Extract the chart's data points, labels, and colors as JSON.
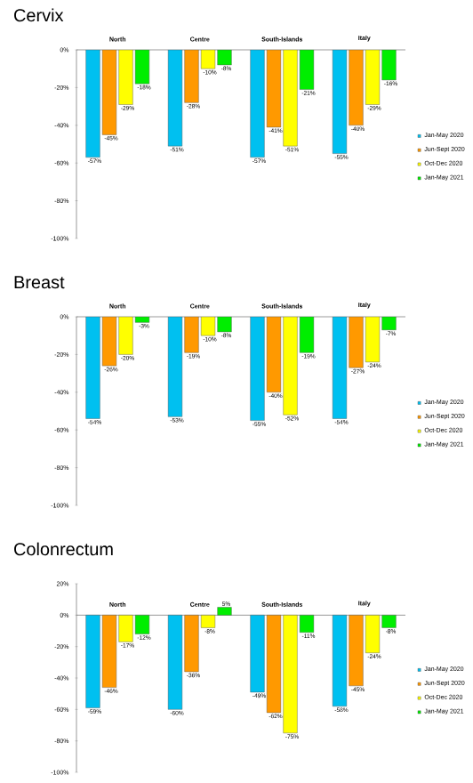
{
  "chart_data": [
    {
      "type": "bar",
      "title": "Cervix",
      "categories": [
        "North",
        "Centre",
        "South-Islands",
        "Italy"
      ],
      "legend": "right",
      "ylim": [
        -100,
        0
      ],
      "yticks": [
        {
          "value": -100,
          "label": "-100%"
        },
        {
          "value": -80,
          "label": "-80%"
        },
        {
          "value": -60,
          "label": "-60%"
        },
        {
          "value": -40,
          "label": "-40%"
        },
        {
          "value": -20,
          "label": "-20%"
        },
        {
          "value": 0,
          "label": "0%"
        }
      ],
      "series": [
        {
          "name": "Jan-May 2020",
          "color": "#00c0f0",
          "values": [
            -57,
            -51,
            -57,
            -55
          ],
          "value_labels": [
            "-57%",
            "-51%",
            "-57%",
            "-55%"
          ]
        },
        {
          "name": "Jun-Sept 2020",
          "color": "#ff9900",
          "values": [
            -45,
            -28,
            -41,
            -40
          ],
          "value_labels": [
            "-45%",
            "-28%",
            "-41%",
            "-40%"
          ]
        },
        {
          "name": "Oct-Dec 2020",
          "color": "#ffff00",
          "values": [
            -29,
            -10,
            -51,
            -29
          ],
          "value_labels": [
            "-29%",
            "-10%",
            "-51%",
            "-29%"
          ]
        },
        {
          "name": "Jan-May 2021",
          "color": "#00ee00",
          "values": [
            -18,
            -8,
            -21,
            -16
          ],
          "value_labels": [
            "-18%",
            "-8%",
            "-21%",
            "-16%"
          ]
        }
      ]
    },
    {
      "type": "bar",
      "title": "Breast",
      "categories": [
        "North",
        "Centre",
        "South-Islands",
        "Italy"
      ],
      "legend": "right",
      "ylim": [
        -100,
        0
      ],
      "yticks": [
        {
          "value": -100,
          "label": "-100%"
        },
        {
          "value": -80,
          "label": "-80%"
        },
        {
          "value": -60,
          "label": "-60%"
        },
        {
          "value": -40,
          "label": "-40%"
        },
        {
          "value": -20,
          "label": "-20%"
        },
        {
          "value": 0,
          "label": "0%"
        }
      ],
      "series": [
        {
          "name": "Jan-May 2020",
          "color": "#00c0f0",
          "values": [
            -54,
            -53,
            -55,
            -54
          ],
          "value_labels": [
            "-54%",
            "-53%",
            "-55%",
            "-54%"
          ]
        },
        {
          "name": "Jun-Sept 2020",
          "color": "#ff9900",
          "values": [
            -26,
            -19,
            -40,
            -27
          ],
          "value_labels": [
            "-26%",
            "-19%",
            "-40%",
            "-27%"
          ]
        },
        {
          "name": "Oct-Dec 2020",
          "color": "#ffff00",
          "values": [
            -20,
            -10,
            -52,
            -24
          ],
          "value_labels": [
            "-20%",
            "-10%",
            "-52%",
            "-24%"
          ]
        },
        {
          "name": "Jan-May 2021",
          "color": "#00ee00",
          "values": [
            -3,
            -8,
            -19,
            -7
          ],
          "value_labels": [
            "-3%",
            "-8%",
            "-19%",
            "-7%"
          ]
        }
      ]
    },
    {
      "type": "bar",
      "title": "Colonrectum",
      "categories": [
        "North",
        "Centre",
        "South-Islands",
        "Italy"
      ],
      "legend": "right",
      "ylim": [
        -100,
        20
      ],
      "yticks": [
        {
          "value": -100,
          "label": "-100%"
        },
        {
          "value": -80,
          "label": "-80%"
        },
        {
          "value": -60,
          "label": "-60%"
        },
        {
          "value": -40,
          "label": "-40%"
        },
        {
          "value": -20,
          "label": "-20%"
        },
        {
          "value": 0,
          "label": "0%"
        },
        {
          "value": 20,
          "label": "20%"
        }
      ],
      "series": [
        {
          "name": "Jan-May 2020",
          "color": "#00c0f0",
          "values": [
            -59,
            -60,
            -49,
            -58
          ],
          "value_labels": [
            "-59%",
            "-60%",
            "-49%",
            "-58%"
          ]
        },
        {
          "name": "Jun-Sept 2020",
          "color": "#ff9900",
          "values": [
            -46,
            -36,
            -62,
            -45
          ],
          "value_labels": [
            "-46%",
            "-36%",
            "-62%",
            "-45%"
          ]
        },
        {
          "name": "Oct-Dec 2020",
          "color": "#ffff00",
          "values": [
            -17,
            -8,
            -75,
            -24
          ],
          "value_labels": [
            "-17%",
            "-8%",
            "-75%",
            "-24%"
          ]
        },
        {
          "name": "Jan-May 2021",
          "color": "#00ee00",
          "values": [
            -12,
            5,
            -11,
            -8
          ],
          "value_labels": [
            "-12%",
            "5%",
            "-11%",
            "-8%"
          ]
        }
      ]
    }
  ]
}
